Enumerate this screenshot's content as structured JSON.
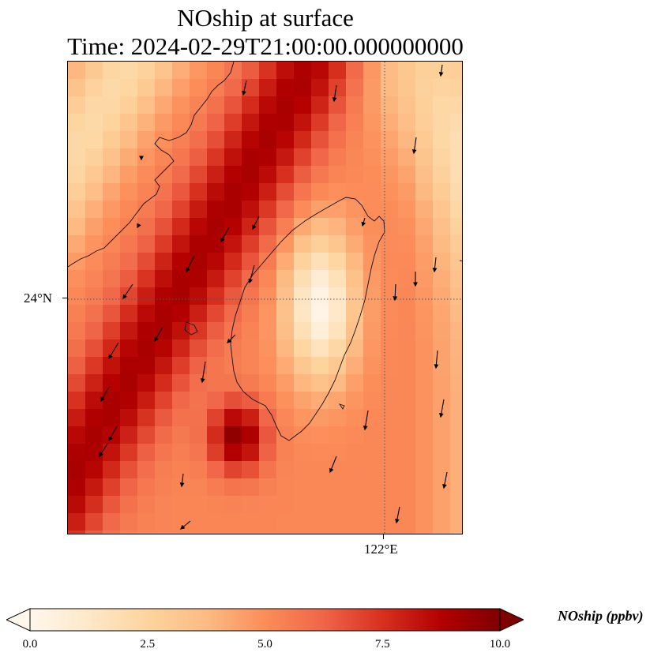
{
  "title": {
    "line1": "NOship at surface",
    "line2": "Time: 2024-02-29T21:00:00.000000000"
  },
  "axes": {
    "lat_tick_label": "24°N",
    "lon_tick_label": "122°E",
    "gridlines": "dotted"
  },
  "colorbar": {
    "label": "NOship (ppbv)",
    "colormap": "OrRd",
    "min": 0.0,
    "max": 10.0,
    "extend": "both",
    "ticks": [
      "0.0",
      "2.5",
      "5.0",
      "7.5",
      "10.0"
    ],
    "colors": [
      "#fff7ec",
      "#fee8c8",
      "#fdd49e",
      "#fdbb84",
      "#fc8d59",
      "#ef6548",
      "#d7301f",
      "#b30000",
      "#7f0000"
    ]
  },
  "chart_data": {
    "type": "heatmap",
    "variable": "NOship",
    "units": "ppbv",
    "overlays": [
      "coastlines",
      "wind vectors"
    ]
  }
}
